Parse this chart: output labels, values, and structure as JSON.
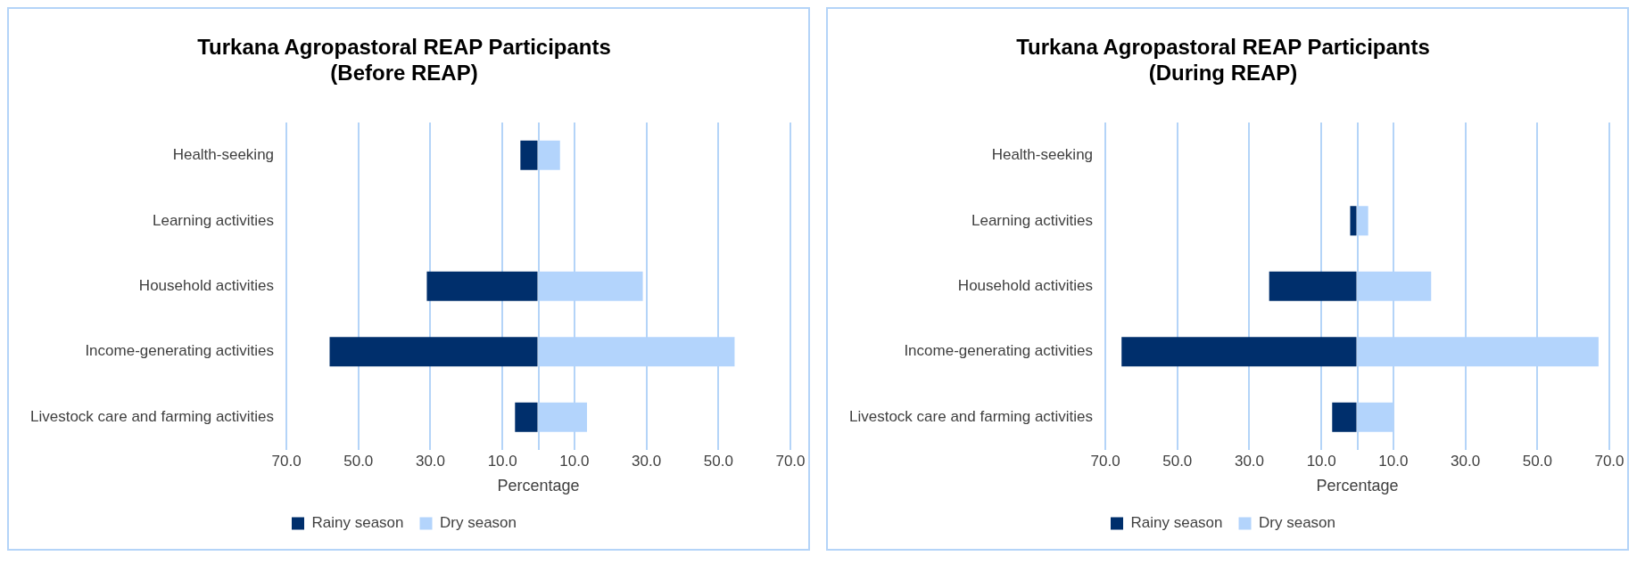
{
  "chart_data": [
    {
      "type": "bar",
      "orientation": "horizontal",
      "stacked": true,
      "title": "Turkana Agropastoral REAP Participants\n(Before REAP)",
      "xlabel": "Percentage",
      "categories": [
        "Health-seeking",
        "Learning activities",
        "Household activities",
        "Income-generating activities",
        "Livestock care and farming activities"
      ],
      "series": [
        {
          "name": "Rainy season",
          "color": "#002f6c",
          "values": [
            -5,
            0,
            -31,
            -58,
            -6.5
          ]
        },
        {
          "name": "Dry season",
          "color": "#b3d4fc",
          "values": [
            6,
            0,
            29,
            54.5,
            13.5
          ]
        }
      ],
      "xlim": [
        -70,
        70
      ],
      "xticks": [
        {
          "value": -70,
          "label": "70.0"
        },
        {
          "value": -50,
          "label": "50.0"
        },
        {
          "value": -30,
          "label": "30.0"
        },
        {
          "value": -10,
          "label": "10.0"
        },
        {
          "value": 0,
          "label": null
        },
        {
          "value": 10,
          "label": "10.0"
        },
        {
          "value": 30,
          "label": "30.0"
        },
        {
          "value": 50,
          "label": "50.0"
        },
        {
          "value": 70,
          "label": "70.0"
        }
      ],
      "grid": "x",
      "legend": "bottom"
    },
    {
      "type": "bar",
      "orientation": "horizontal",
      "stacked": true,
      "title": "Turkana Agropastoral REAP Participants\n(During REAP)",
      "xlabel": "Percentage",
      "categories": [
        "Health-seeking",
        "Learning activities",
        "Household activities",
        "Income-generating activities",
        "Livestock care and farming activities"
      ],
      "series": [
        {
          "name": "Rainy season",
          "color": "#002f6c",
          "values": [
            0,
            -2,
            -24.5,
            -65.5,
            -7
          ]
        },
        {
          "name": "Dry season",
          "color": "#b3d4fc",
          "values": [
            0,
            3,
            20.5,
            67,
            10
          ]
        }
      ],
      "xlim": [
        -70,
        70
      ],
      "xticks": [
        {
          "value": -70,
          "label": "70.0"
        },
        {
          "value": -50,
          "label": "50.0"
        },
        {
          "value": -30,
          "label": "30.0"
        },
        {
          "value": -10,
          "label": "10.0"
        },
        {
          "value": 0,
          "label": null
        },
        {
          "value": 10,
          "label": "10.0"
        },
        {
          "value": 30,
          "label": "30.0"
        },
        {
          "value": 50,
          "label": "50.0"
        },
        {
          "value": 70,
          "label": "70.0"
        }
      ],
      "grid": "x",
      "legend": "bottom"
    }
  ]
}
